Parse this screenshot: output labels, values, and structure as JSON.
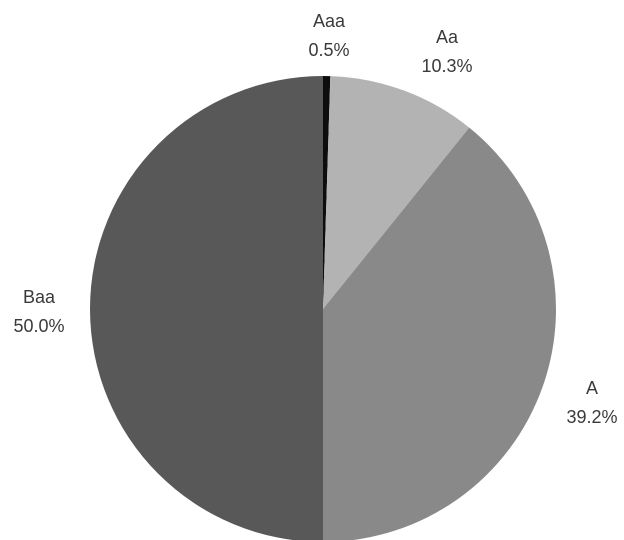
{
  "chart_data": {
    "type": "pie",
    "title": "",
    "categories": [
      "Aaa",
      "Aa",
      "A",
      "Baa"
    ],
    "values": [
      0.5,
      10.3,
      39.2,
      50.0
    ],
    "value_labels": [
      "0.5%",
      "10.3%",
      "39.2%",
      "50.0%"
    ],
    "colors": [
      "#0d0d0d",
      "#b3b3b3",
      "#898989",
      "#585858"
    ],
    "start_angle_deg": 0,
    "direction": "clockwise",
    "legend": "none",
    "data_labels": "outside"
  }
}
